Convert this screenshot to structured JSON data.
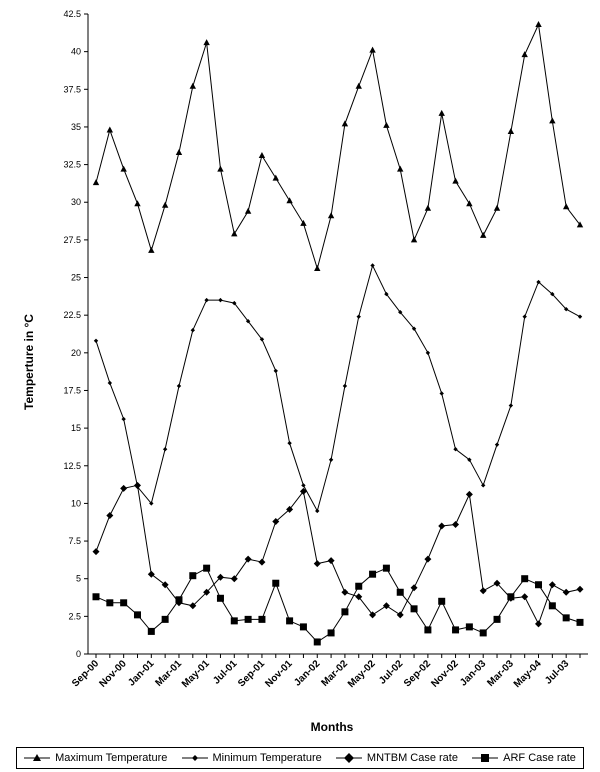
{
  "chart_data": {
    "type": "line",
    "title": "",
    "xlabel": "Months",
    "ylabel": "Temperture in °C",
    "ylim": [
      0,
      42.5
    ],
    "yticks": [
      "0",
      "2.5",
      "5",
      "7.5",
      "10",
      "12.5",
      "15",
      "17.5",
      "20",
      "22.5",
      "25",
      "27.5",
      "30",
      "32.5",
      "35",
      "37.5",
      "40",
      "42.5"
    ],
    "x": [
      "Sep-00",
      "Oct-00",
      "Nov-00",
      "Dec-00",
      "Jan-01",
      "Feb-01",
      "Mar-01",
      "Apr-01",
      "May-01",
      "Jun-01",
      "Jul-01",
      "Aug-01",
      "Sep-01",
      "Oct-01",
      "Nov-01",
      "Dec-01",
      "Jan-02",
      "Feb-02",
      "Mar-02",
      "Apr-02",
      "May-02",
      "Jun-02",
      "Jul-02",
      "Aug-02",
      "Sep-02",
      "Oct-02",
      "Nov-02",
      "Dec-02",
      "Jan-03",
      "Feb-03",
      "Mar-03",
      "Apr-03",
      "May-04",
      "Jun-03",
      "Jul-03",
      "Aug-03"
    ],
    "xticks_shown": [
      "Sep-00",
      "Nov-00",
      "Jan-01",
      "Mar-01",
      "May-01",
      "Jul-01",
      "Sep-01",
      "Nov-01",
      "Jan-02",
      "Mar-02",
      "May-02",
      "Jul-02",
      "Sep-02",
      "Nov-02",
      "Jan-03",
      "Mar-03",
      "May-04",
      "Jul-03"
    ],
    "grid": false,
    "legend": "bottom",
    "series": [
      {
        "name": "Maximum Temperature",
        "marker": "triangle",
        "values": [
          31.3,
          34.8,
          32.2,
          29.9,
          26.8,
          29.8,
          33.3,
          37.7,
          40.6,
          32.2,
          27.9,
          29.4,
          33.1,
          31.6,
          30.1,
          28.6,
          25.6,
          29.1,
          35.2,
          37.7,
          40.1,
          35.1,
          32.2,
          27.5,
          29.6,
          35.9,
          31.4,
          29.9,
          27.8,
          29.6,
          34.7,
          39.8,
          41.8,
          35.4,
          29.7,
          28.5
        ]
      },
      {
        "name": "Minimum Temperature",
        "marker": "small-diamond",
        "values": [
          20.8,
          18.0,
          15.6,
          11.1,
          10.0,
          13.6,
          17.8,
          21.5,
          23.5,
          23.5,
          23.3,
          22.1,
          20.9,
          18.8,
          14.0,
          11.2,
          9.5,
          12.9,
          17.8,
          22.4,
          25.8,
          23.9,
          22.7,
          21.6,
          20.0,
          17.3,
          13.6,
          12.9,
          11.2,
          13.9,
          16.5,
          22.4,
          24.7,
          23.9,
          22.9,
          22.4
        ]
      },
      {
        "name": "MNTBM Case rate",
        "marker": "diamond",
        "values": [
          6.8,
          9.2,
          11.0,
          11.2,
          5.3,
          4.6,
          3.4,
          3.2,
          4.1,
          5.1,
          5.0,
          6.3,
          6.1,
          8.8,
          9.6,
          10.8,
          6.0,
          6.2,
          4.1,
          3.8,
          2.6,
          3.2,
          2.6,
          4.4,
          6.3,
          8.5,
          8.6,
          10.6,
          4.2,
          4.7,
          3.7,
          3.8,
          2.0,
          4.6,
          4.1,
          4.3
        ]
      },
      {
        "name": "ARF Case rate",
        "marker": "square",
        "values": [
          3.8,
          3.4,
          3.4,
          2.6,
          1.5,
          2.3,
          3.6,
          5.2,
          5.7,
          3.7,
          2.2,
          2.3,
          2.3,
          4.7,
          2.2,
          1.8,
          0.8,
          1.4,
          2.8,
          4.5,
          5.3,
          5.7,
          4.1,
          3.0,
          1.6,
          3.5,
          1.6,
          1.8,
          1.4,
          2.3,
          3.8,
          5.0,
          4.6,
          3.2,
          2.4,
          2.1
        ]
      }
    ]
  }
}
